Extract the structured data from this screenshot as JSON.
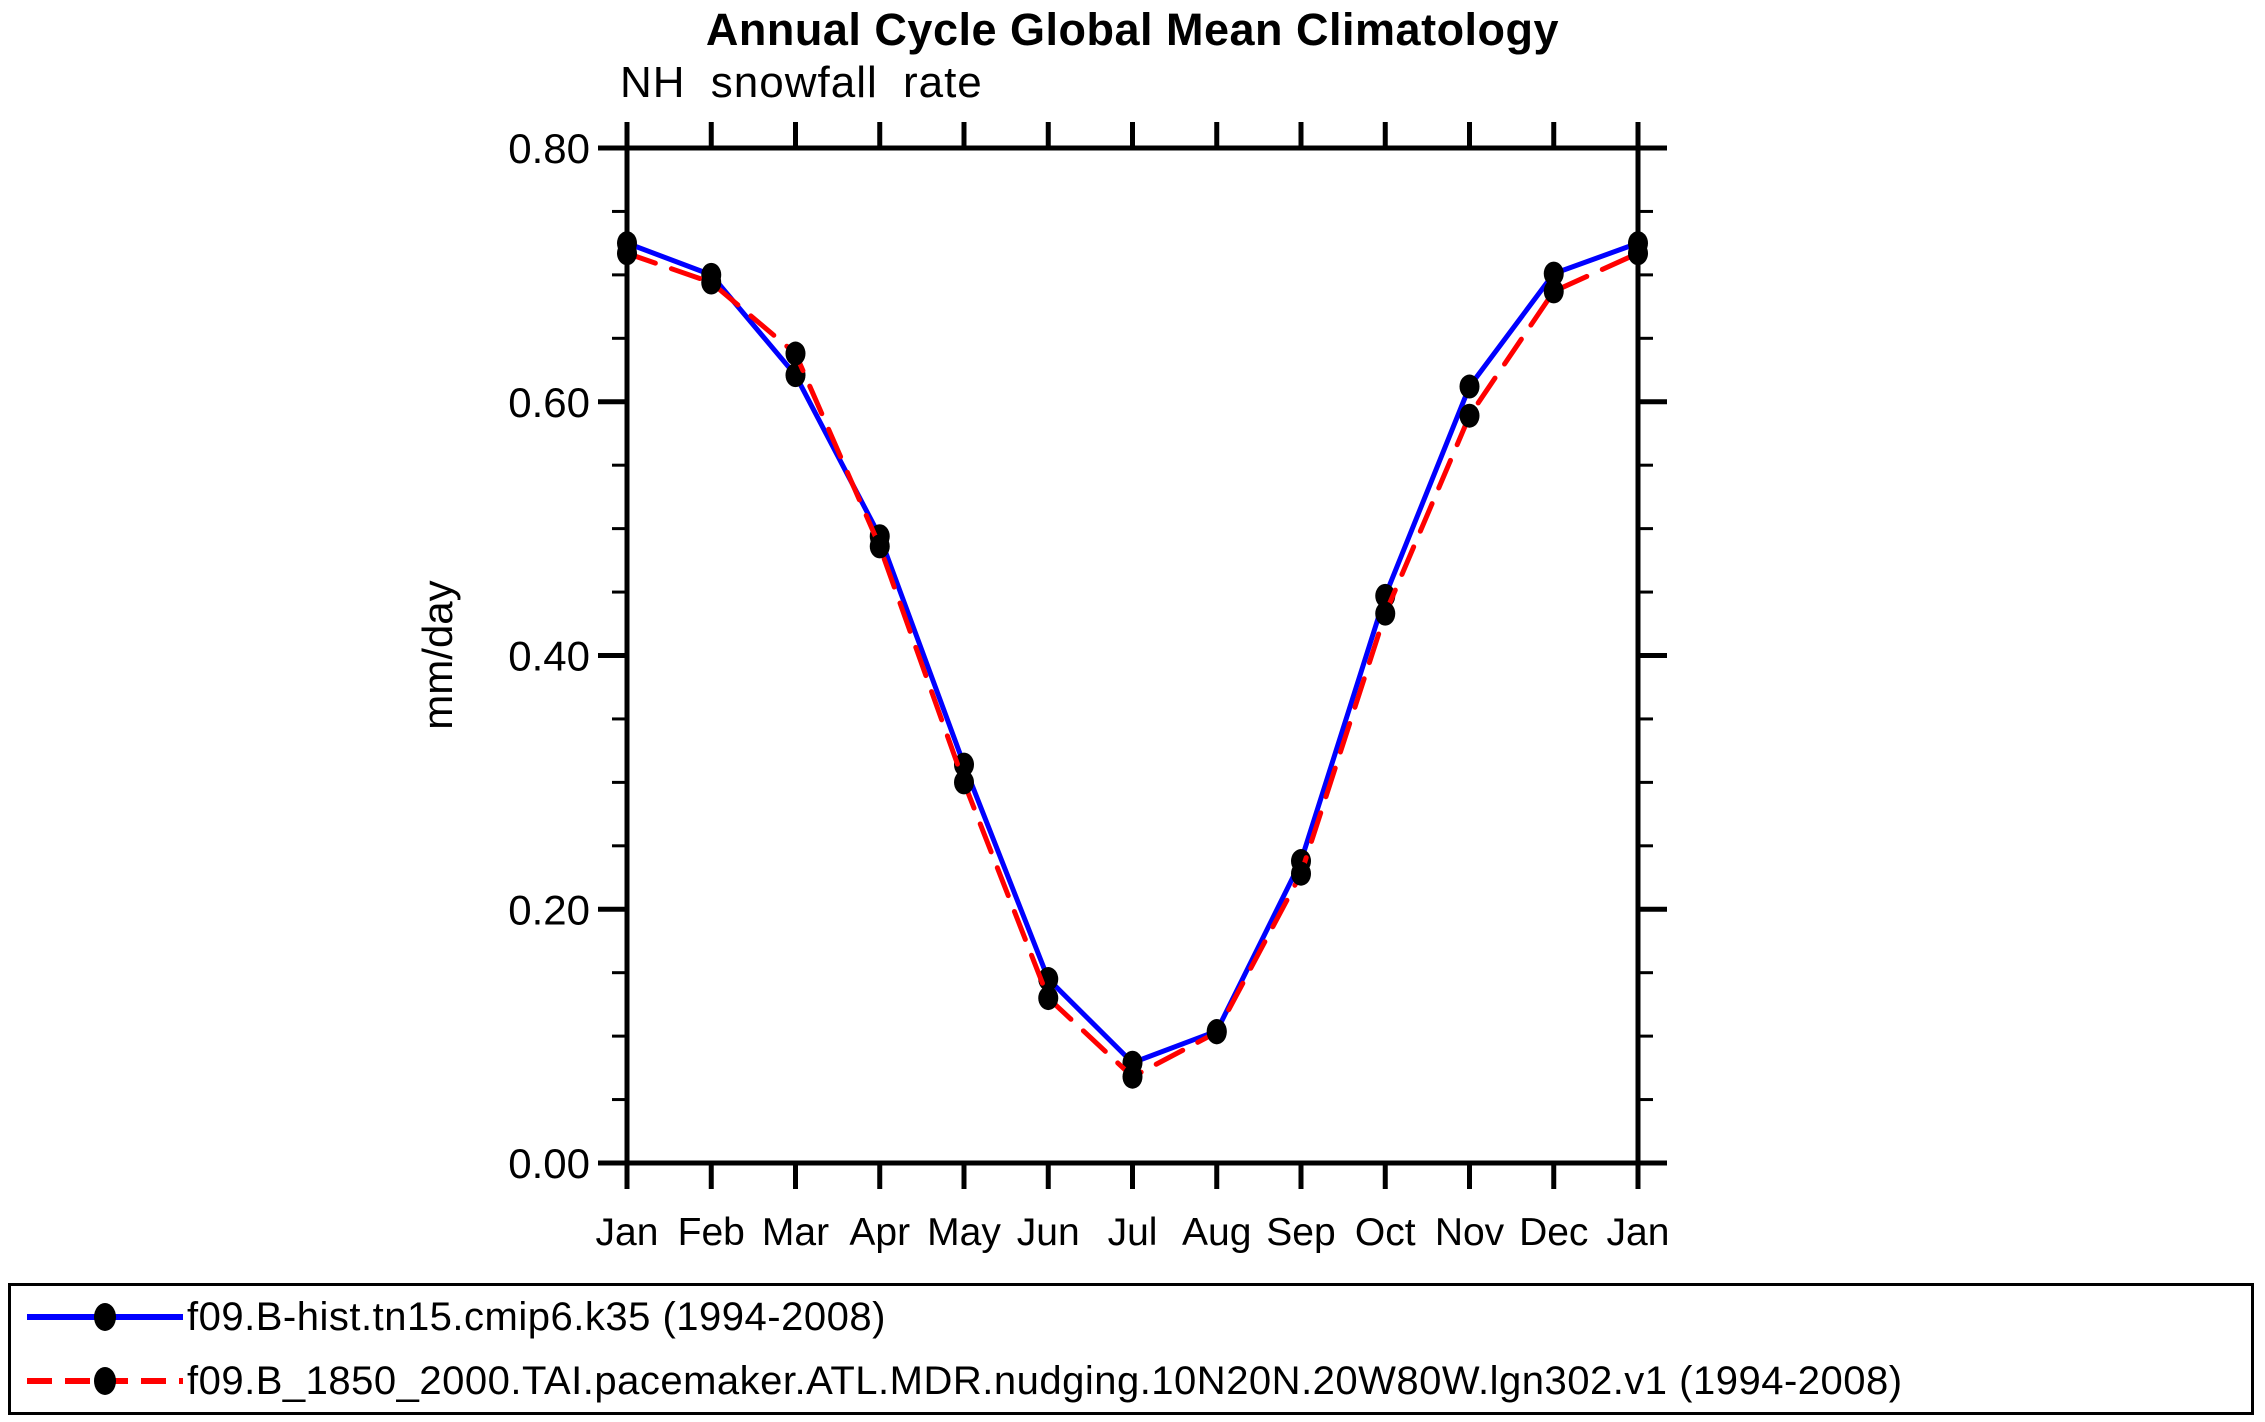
{
  "chart_data": {
    "type": "line",
    "title": "Annual Cycle Global Mean Climatology",
    "subtitle": "NH snowfall rate",
    "ylabel": "mm/day",
    "xlabel": "",
    "categories": [
      "Jan",
      "Feb",
      "Mar",
      "Apr",
      "May",
      "Jun",
      "Jul",
      "Aug",
      "Sep",
      "Oct",
      "Nov",
      "Dec",
      "Jan"
    ],
    "ylim": [
      0.0,
      0.8
    ],
    "y_major_step": 0.2,
    "y_minor_step": 0.05,
    "y_tick_labels": [
      "0.00",
      "0.20",
      "0.40",
      "0.60",
      "0.80"
    ],
    "grid": false,
    "legend_position": "bottom",
    "axis_color": "#000000",
    "background_color": "#ffffff",
    "series": [
      {
        "name": "f09.B-hist.tn15.cmip6.k35 (1994-2008)",
        "color": "#0000ff",
        "line_style": "solid",
        "marker": "filled-circle",
        "marker_color": "#000000",
        "values": [
          0.725,
          0.7,
          0.621,
          0.494,
          0.314,
          0.145,
          0.079,
          0.104,
          0.238,
          0.447,
          0.612,
          0.701,
          0.725
        ]
      },
      {
        "name": "f09.B_1850_2000.TAI.pacemaker.ATL.MDR.nudging.10N20N.20W80W.lgn302.v1 (1994-2008)",
        "color": "#ff0000",
        "line_style": "dashed",
        "marker": "filled-circle",
        "marker_color": "#000000",
        "values": [
          0.717,
          0.694,
          0.638,
          0.486,
          0.3,
          0.13,
          0.068,
          0.103,
          0.228,
          0.433,
          0.589,
          0.687,
          0.717
        ]
      }
    ]
  }
}
